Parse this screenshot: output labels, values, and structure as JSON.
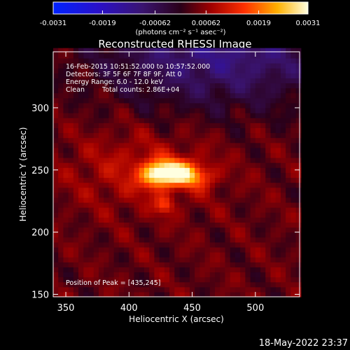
{
  "chart_data": {
    "type": "heatmap",
    "title": "Reconstructed RHESSI Image",
    "xlabel": "Heliocentric X (arcsec)",
    "ylabel": "Heliocentric Y (arcsec)",
    "xlim": [
      340,
      535
    ],
    "ylim": [
      148,
      345
    ],
    "x_ticks": [
      350,
      400,
      450,
      500
    ],
    "y_ticks": [
      150,
      200,
      250,
      300
    ],
    "colorbar": {
      "min": -0.0031,
      "max": 0.0031,
      "tick_values": [
        -0.0031,
        -0.0019,
        -0.00062,
        0.00062,
        0.0019,
        0.0031
      ],
      "tick_labels": [
        "-0.0031",
        "-0.0019",
        "-0.00062",
        "0.00062",
        "0.0019",
        "0.0031"
      ],
      "unit_label": "(photons cm⁻² s⁻¹ asec⁻²)"
    },
    "annotations": {
      "time_range": "16-Feb-2015 10:51:52.000 to 10:57:52.000",
      "detectors": "Detectors: 3F 5F 6F 7F 8F 9F, Att 0",
      "energy_range": "Energy Range: 6.0 - 12.0 keV",
      "clean_label": "Clean",
      "total_counts": "Total counts: 2.86E+04",
      "peak_position": "Position of Peak = [435,245]"
    },
    "peak": [
      435,
      245
    ],
    "sources": [
      {
        "x": 435,
        "y": 248,
        "sx": 13,
        "sy": 7,
        "amp": 0.0026
      },
      {
        "x": 420,
        "y": 246,
        "sx": 8,
        "sy": 7,
        "amp": 0.0012
      },
      {
        "x": 455,
        "y": 244,
        "sx": 10,
        "sy": 6,
        "amp": 0.0008
      },
      {
        "x": 428,
        "y": 222,
        "sx": 5,
        "sy": 5,
        "amp": 0.001
      },
      {
        "x": 408,
        "y": 250,
        "sx": 40,
        "sy": 22,
        "amp": 0.0006
      }
    ],
    "background_level": 0.0006,
    "negative_region": {
      "x": 472,
      "y": 345,
      "sx": 65,
      "sy": 30,
      "amp": -0.0014
    },
    "timestamp": "18-May-2022 23:37"
  }
}
